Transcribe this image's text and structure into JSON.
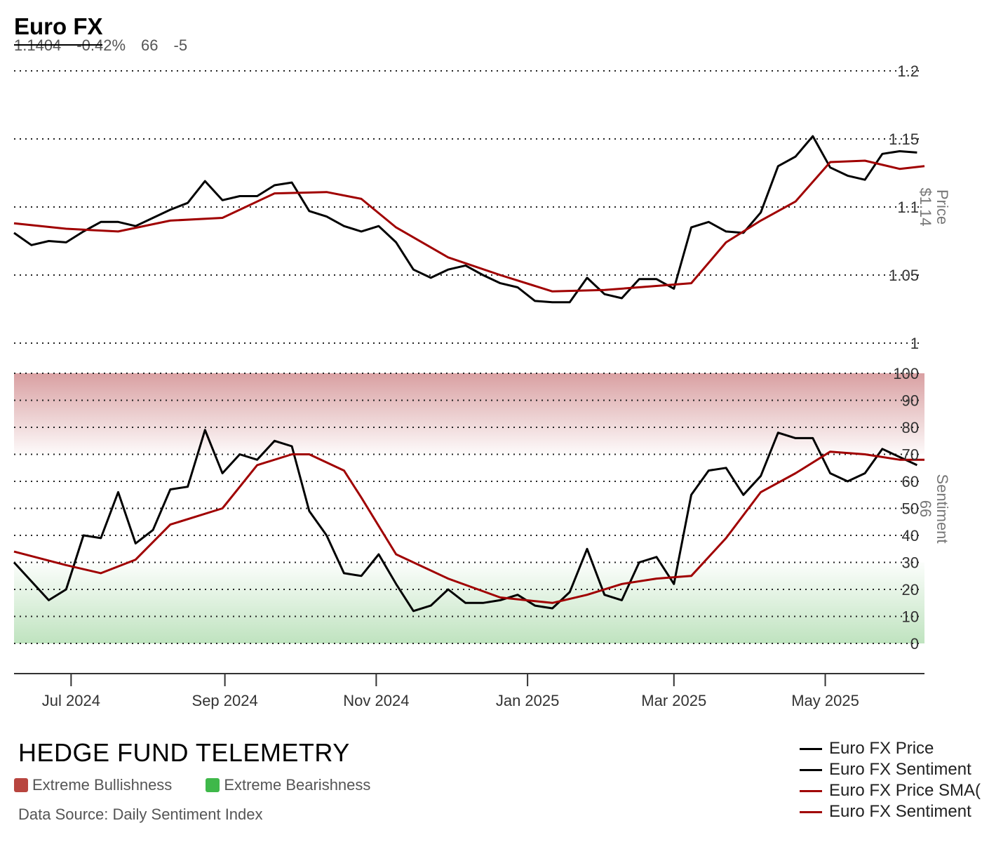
{
  "header": {
    "title": "Euro FX",
    "price": "1.1404",
    "change": "-0.42%",
    "sentiment": "66",
    "sentiment_change": "-5"
  },
  "footer": {
    "brand": "HEDGE FUND TELEMETRY",
    "zones": [
      {
        "label": "Extreme Bullishness",
        "color": "#b8453f"
      },
      {
        "label": "Extreme Bearishness",
        "color": "#3fb84a"
      }
    ],
    "source": "Data Source: Daily Sentiment Index"
  },
  "legend": [
    {
      "label": "Euro FX Price",
      "color": "#000000"
    },
    {
      "label": "Euro FX Sentiment",
      "color": "#000000"
    },
    {
      "label": "Euro FX Price SMA(",
      "color": "#a00000"
    },
    {
      "label": "Euro FX Sentiment",
      "color": "#a00000"
    }
  ],
  "chart_data": {
    "type": "line",
    "x_ticks": [
      "Jul 2024",
      "Sep 2024",
      "Nov 2024",
      "Jan 2025",
      "Mar 2025",
      "May 2025"
    ],
    "x_tick_dates": [
      "2024-07-01",
      "2024-09-01",
      "2024-11-01",
      "2025-01-01",
      "2025-03-01",
      "2025-05-01"
    ],
    "x_range": [
      "2024-06-08",
      "2025-06-10"
    ],
    "price_panel": {
      "ylabel": "Price",
      "last_label": "$1.14",
      "ylim": [
        1.0,
        1.2
      ],
      "ticks": [
        1,
        1.05,
        1.1,
        1.15,
        1.2
      ],
      "tick_labels": [
        "1",
        "1.05",
        "1.1",
        "1.15",
        "1.2"
      ],
      "grid": "dotted",
      "series": [
        {
          "name": "Euro FX Price",
          "color": "#000000",
          "points": [
            [
              "2024-06-08",
              1.081
            ],
            [
              "2024-06-15",
              1.072
            ],
            [
              "2024-06-22",
              1.075
            ],
            [
              "2024-06-29",
              1.074
            ],
            [
              "2024-07-06",
              1.082
            ],
            [
              "2024-07-13",
              1.089
            ],
            [
              "2024-07-20",
              1.089
            ],
            [
              "2024-07-27",
              1.086
            ],
            [
              "2024-08-03",
              1.092
            ],
            [
              "2024-08-10",
              1.098
            ],
            [
              "2024-08-17",
              1.103
            ],
            [
              "2024-08-24",
              1.119
            ],
            [
              "2024-08-31",
              1.105
            ],
            [
              "2024-09-07",
              1.108
            ],
            [
              "2024-09-14",
              1.108
            ],
            [
              "2024-09-21",
              1.116
            ],
            [
              "2024-09-28",
              1.118
            ],
            [
              "2024-10-05",
              1.097
            ],
            [
              "2024-10-12",
              1.093
            ],
            [
              "2024-10-19",
              1.086
            ],
            [
              "2024-10-26",
              1.082
            ],
            [
              "2024-11-02",
              1.086
            ],
            [
              "2024-11-09",
              1.074
            ],
            [
              "2024-11-16",
              1.054
            ],
            [
              "2024-11-23",
              1.048
            ],
            [
              "2024-11-30",
              1.054
            ],
            [
              "2024-12-07",
              1.057
            ],
            [
              "2024-12-14",
              1.05
            ],
            [
              "2024-12-21",
              1.044
            ],
            [
              "2024-12-28",
              1.041
            ],
            [
              "2025-01-04",
              1.031
            ],
            [
              "2025-01-11",
              1.03
            ],
            [
              "2025-01-18",
              1.03
            ],
            [
              "2025-01-25",
              1.048
            ],
            [
              "2025-02-01",
              1.036
            ],
            [
              "2025-02-08",
              1.033
            ],
            [
              "2025-02-15",
              1.047
            ],
            [
              "2025-02-22",
              1.047
            ],
            [
              "2025-03-01",
              1.04
            ],
            [
              "2025-03-08",
              1.085
            ],
            [
              "2025-03-15",
              1.089
            ],
            [
              "2025-03-22",
              1.082
            ],
            [
              "2025-03-29",
              1.081
            ],
            [
              "2025-04-05",
              1.096
            ],
            [
              "2025-04-12",
              1.13
            ],
            [
              "2025-04-19",
              1.137
            ],
            [
              "2025-04-26",
              1.152
            ],
            [
              "2025-05-03",
              1.129
            ],
            [
              "2025-05-10",
              1.123
            ],
            [
              "2025-05-17",
              1.12
            ],
            [
              "2025-05-24",
              1.139
            ],
            [
              "2025-05-31",
              1.141
            ],
            [
              "2025-06-07",
              1.14
            ]
          ]
        },
        {
          "name": "Euro FX Price SMA(",
          "color": "#a00000",
          "points": [
            [
              "2024-06-08",
              1.088
            ],
            [
              "2024-06-29",
              1.084
            ],
            [
              "2024-07-20",
              1.082
            ],
            [
              "2024-08-10",
              1.09
            ],
            [
              "2024-08-31",
              1.092
            ],
            [
              "2024-09-21",
              1.11
            ],
            [
              "2024-10-12",
              1.111
            ],
            [
              "2024-10-26",
              1.106
            ],
            [
              "2024-11-09",
              1.085
            ],
            [
              "2024-11-30",
              1.063
            ],
            [
              "2024-12-21",
              1.05
            ],
            [
              "2025-01-11",
              1.038
            ],
            [
              "2025-02-01",
              1.039
            ],
            [
              "2025-02-22",
              1.042
            ],
            [
              "2025-03-08",
              1.044
            ],
            [
              "2025-03-22",
              1.074
            ],
            [
              "2025-04-05",
              1.09
            ],
            [
              "2025-04-19",
              1.104
            ],
            [
              "2025-05-03",
              1.133
            ],
            [
              "2025-05-17",
              1.134
            ],
            [
              "2025-05-31",
              1.128
            ],
            [
              "2025-06-10",
              1.13
            ]
          ]
        }
      ]
    },
    "sentiment_panel": {
      "ylabel": "Sentiment",
      "last_label": "66",
      "ylim": [
        0,
        100
      ],
      "ticks": [
        0,
        10,
        20,
        30,
        40,
        50,
        60,
        70,
        80,
        90,
        100
      ],
      "tick_labels": [
        "0",
        "10",
        "20",
        "30",
        "40",
        "50",
        "60",
        "70",
        "80",
        "90",
        "100"
      ],
      "grid": "dotted",
      "bands": [
        {
          "from": 70,
          "to": 100,
          "color": "#d9a0a2",
          "meaning": "Extreme Bullishness"
        },
        {
          "from": 0,
          "to": 30,
          "color": "#bfe3bf",
          "meaning": "Extreme Bearishness"
        }
      ],
      "series": [
        {
          "name": "Euro FX Sentiment",
          "color": "#000000",
          "points": [
            [
              "2024-06-08",
              30
            ],
            [
              "2024-06-15",
              23
            ],
            [
              "2024-06-22",
              16
            ],
            [
              "2024-06-29",
              20
            ],
            [
              "2024-07-06",
              40
            ],
            [
              "2024-07-13",
              39
            ],
            [
              "2024-07-20",
              56
            ],
            [
              "2024-07-27",
              37
            ],
            [
              "2024-08-03",
              42
            ],
            [
              "2024-08-10",
              57
            ],
            [
              "2024-08-17",
              58
            ],
            [
              "2024-08-24",
              79
            ],
            [
              "2024-08-31",
              63
            ],
            [
              "2024-09-07",
              70
            ],
            [
              "2024-09-14",
              68
            ],
            [
              "2024-09-21",
              75
            ],
            [
              "2024-09-28",
              73
            ],
            [
              "2024-10-05",
              49
            ],
            [
              "2024-10-12",
              40
            ],
            [
              "2024-10-19",
              26
            ],
            [
              "2024-10-26",
              25
            ],
            [
              "2024-11-02",
              33
            ],
            [
              "2024-11-09",
              22
            ],
            [
              "2024-11-16",
              12
            ],
            [
              "2024-11-23",
              14
            ],
            [
              "2024-11-30",
              20
            ],
            [
              "2024-12-07",
              15
            ],
            [
              "2024-12-14",
              15
            ],
            [
              "2024-12-21",
              16
            ],
            [
              "2024-12-28",
              18
            ],
            [
              "2025-01-04",
              14
            ],
            [
              "2025-01-11",
              13
            ],
            [
              "2025-01-18",
              19
            ],
            [
              "2025-01-25",
              35
            ],
            [
              "2025-02-01",
              18
            ],
            [
              "2025-02-08",
              16
            ],
            [
              "2025-02-15",
              30
            ],
            [
              "2025-02-22",
              32
            ],
            [
              "2025-03-01",
              22
            ],
            [
              "2025-03-08",
              55
            ],
            [
              "2025-03-15",
              64
            ],
            [
              "2025-03-22",
              65
            ],
            [
              "2025-03-29",
              55
            ],
            [
              "2025-04-05",
              62
            ],
            [
              "2025-04-12",
              78
            ],
            [
              "2025-04-19",
              76
            ],
            [
              "2025-04-26",
              76
            ],
            [
              "2025-05-03",
              63
            ],
            [
              "2025-05-10",
              60
            ],
            [
              "2025-05-17",
              63
            ],
            [
              "2025-05-24",
              72
            ],
            [
              "2025-05-31",
              69
            ],
            [
              "2025-06-07",
              66
            ]
          ]
        },
        {
          "name": "Euro FX Sentiment",
          "color": "#a00000",
          "points": [
            [
              "2024-06-08",
              34
            ],
            [
              "2024-06-29",
              29
            ],
            [
              "2024-07-13",
              26
            ],
            [
              "2024-07-27",
              31
            ],
            [
              "2024-08-10",
              44
            ],
            [
              "2024-08-31",
              50
            ],
            [
              "2024-09-14",
              66
            ],
            [
              "2024-09-28",
              70
            ],
            [
              "2024-10-05",
              70
            ],
            [
              "2024-10-19",
              64
            ],
            [
              "2024-10-26",
              54
            ],
            [
              "2024-11-09",
              33
            ],
            [
              "2024-11-30",
              24
            ],
            [
              "2024-12-21",
              17
            ],
            [
              "2025-01-11",
              15
            ],
            [
              "2025-01-25",
              18
            ],
            [
              "2025-02-08",
              22
            ],
            [
              "2025-02-22",
              24
            ],
            [
              "2025-03-08",
              25
            ],
            [
              "2025-03-22",
              39
            ],
            [
              "2025-04-05",
              56
            ],
            [
              "2025-04-19",
              63
            ],
            [
              "2025-05-03",
              71
            ],
            [
              "2025-05-17",
              70
            ],
            [
              "2025-05-31",
              68
            ],
            [
              "2025-06-10",
              68
            ]
          ]
        }
      ]
    }
  }
}
